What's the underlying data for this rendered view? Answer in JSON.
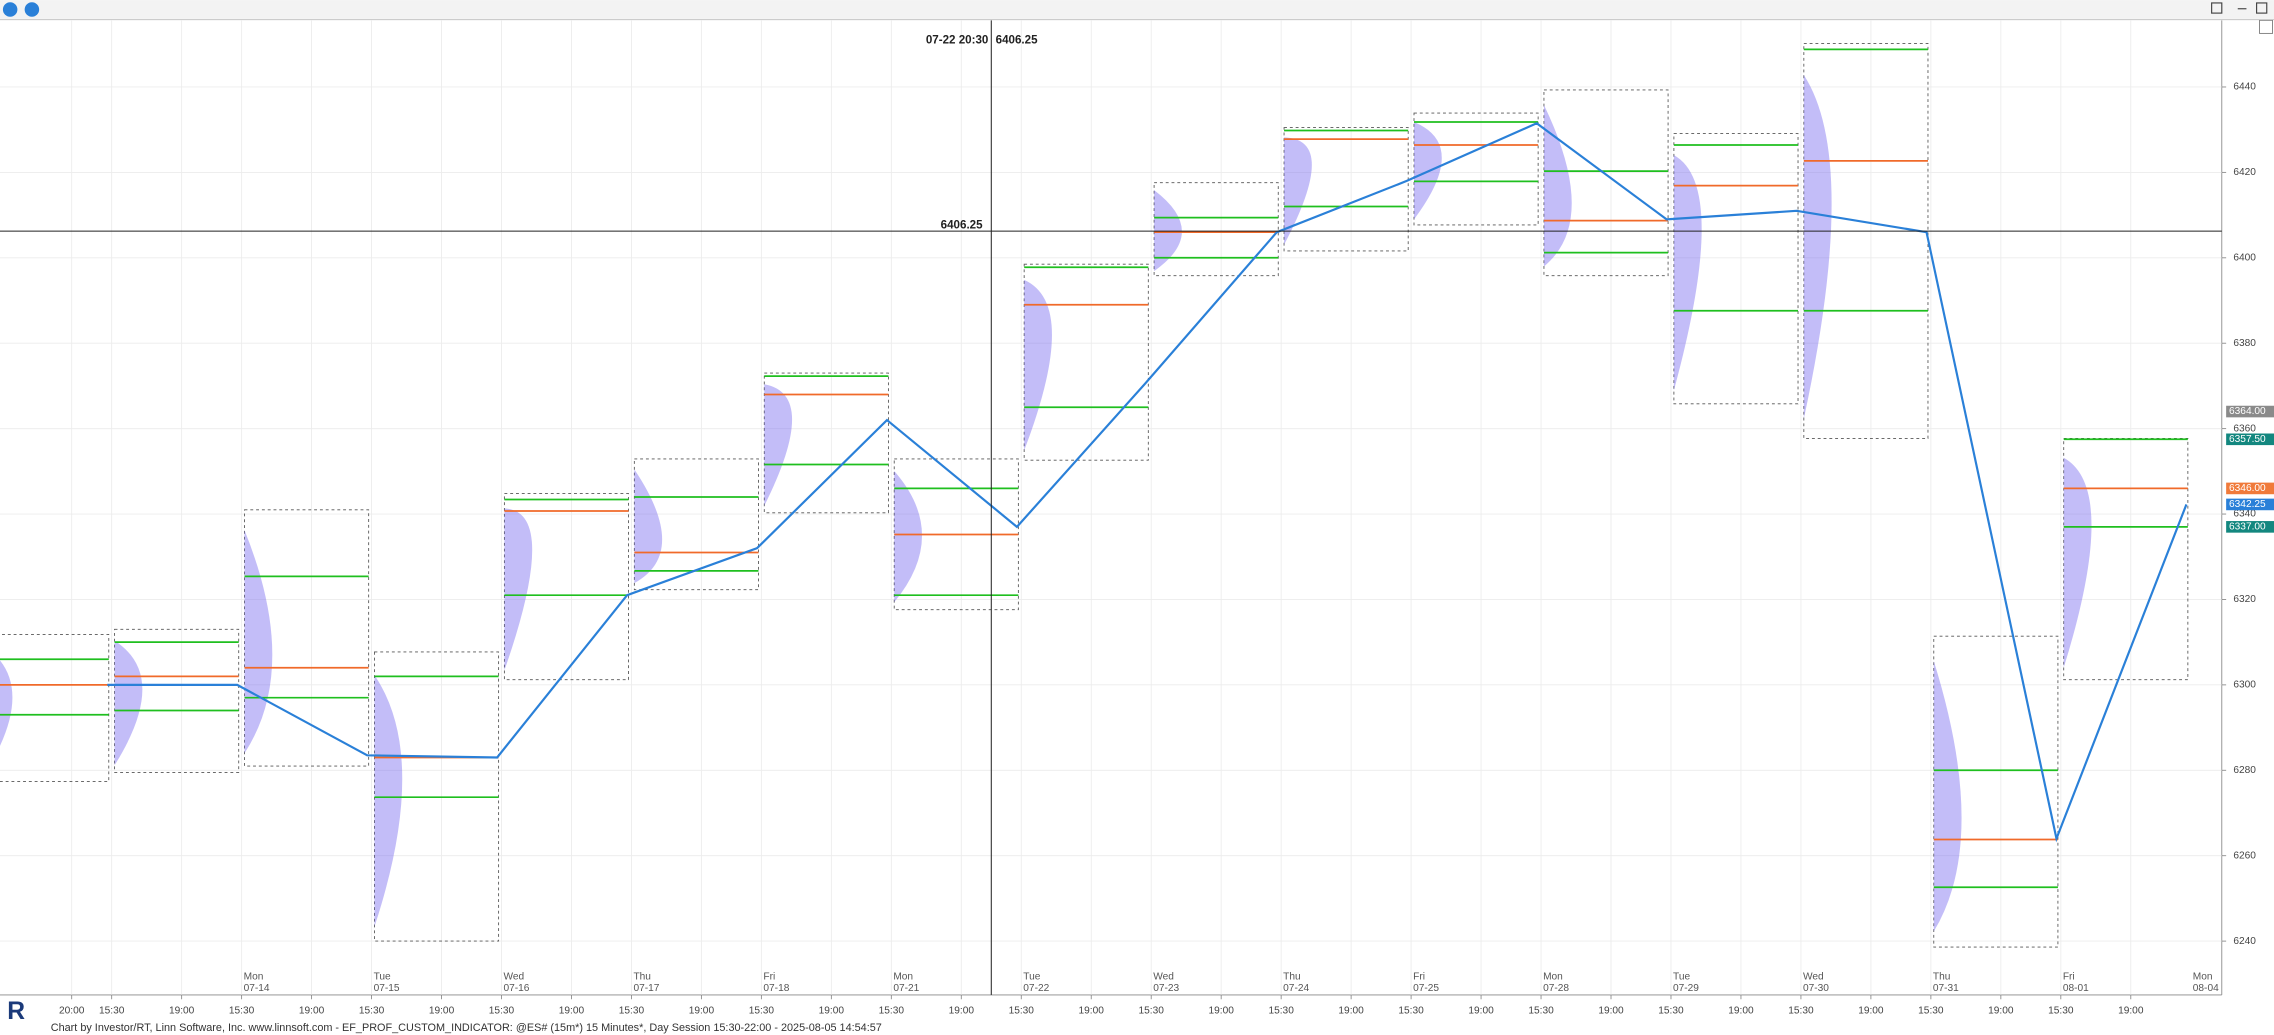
{
  "chart_data": {
    "type": "session-profile",
    "ylim": [
      6227.4,
      6455.6
    ],
    "yticks": [
      6240,
      6260,
      6280,
      6300,
      6320,
      6340,
      6360,
      6380,
      6400,
      6420,
      6440
    ],
    "grid": true,
    "colors": {
      "range": "#555555",
      "value_area": "#1fbf1f",
      "poc": "#f06a2a",
      "vwap": "#2a80d8"
    },
    "price_tags": [
      {
        "value": 6364,
        "label": "6364.00",
        "color": "#8a8a8a"
      },
      {
        "value": 6357.5,
        "label": "6357.50",
        "color": "#13877f"
      },
      {
        "value": 6346,
        "label": "6346.00",
        "color": "#f07a3a"
      },
      {
        "value": 6342.25,
        "label": "6342.25",
        "color": "#2a80d8"
      },
      {
        "value": 6337,
        "label": "6337.00",
        "color": "#13877f"
      }
    ],
    "crosshair": {
      "time": "07-22 20:30",
      "price": 6406.25
    },
    "sessions": [
      {
        "times": [
          "20:00"
        ],
        "high": 6311.8,
        "low": 6277.4,
        "vah": 6306,
        "val": 6293,
        "poc": 6300,
        "vwap": 6300
      },
      {
        "day": "Mon",
        "date": "07-14",
        "times": [
          "15:30",
          "19:00"
        ],
        "high": 6313,
        "low": 6279.5,
        "vah": 6310,
        "val": 6294,
        "poc": 6302,
        "vwap": 6300
      },
      {
        "day": "Tue",
        "date": "07-15",
        "times": [
          "15:30",
          "19:00"
        ],
        "high": 6341,
        "low": 6281,
        "vah": 6325.4,
        "val": 6297,
        "poc": 6304,
        "vwap": 6283.5
      },
      {
        "day": "Wed",
        "date": "07-16",
        "times": [
          "15:30",
          "19:00"
        ],
        "high": 6307.7,
        "low": 6240,
        "vah": 6302,
        "val": 6273.7,
        "poc": 6283,
        "vwap": 6283
      },
      {
        "day": "Thu",
        "date": "07-17",
        "times": [
          "15:30",
          "19:00"
        ],
        "high": 6344.8,
        "low": 6301.2,
        "vah": 6343.4,
        "val": 6321,
        "poc": 6340.7,
        "vwap": 6321
      },
      {
        "day": "Fri",
        "date": "07-18",
        "times": [
          "15:30",
          "19:00"
        ],
        "high": 6352.9,
        "low": 6322.3,
        "vah": 6344,
        "val": 6326.7,
        "poc": 6331,
        "vwap": 6332
      },
      {
        "day": "Mon",
        "date": "07-21",
        "times": [
          "15:30",
          "19:00"
        ],
        "high": 6373,
        "low": 6340.3,
        "vah": 6372.3,
        "val": 6351.6,
        "poc": 6368,
        "vwap": 6362
      },
      {
        "day": "Tue",
        "date": "07-22",
        "times": [
          "15:30",
          "19:00"
        ],
        "high": 6352.9,
        "low": 6317.6,
        "vah": 6346,
        "val": 6321,
        "poc": 6335.2,
        "vwap": 6337
      },
      {
        "day": "Wed",
        "date": "07-23",
        "times": [
          "15:30",
          "19:00"
        ],
        "high": 6398.5,
        "low": 6352.6,
        "vah": 6397.8,
        "val": 6365,
        "poc": 6389,
        "vwap": 6371
      },
      {
        "day": "Thu",
        "date": "07-24",
        "times": [
          "15:30",
          "19:00"
        ],
        "high": 6417.6,
        "low": 6395.8,
        "vah": 6409.4,
        "val": 6400,
        "poc": 6406,
        "vwap": 6406
      },
      {
        "day": "Fri",
        "date": "07-25",
        "times": [
          "15:30",
          "19:00"
        ],
        "high": 6430.5,
        "low": 6401.6,
        "vah": 6429.8,
        "val": 6412,
        "poc": 6427.8,
        "vwap": 6418
      },
      {
        "day": "Mon",
        "date": "07-28",
        "times": [
          "15:30",
          "19:00"
        ],
        "high": 6433.9,
        "low": 6407.7,
        "vah": 6431.8,
        "val": 6417.9,
        "poc": 6426.4,
        "vwap": 6431.5
      },
      {
        "day": "Tue",
        "date": "07-29",
        "times": [
          "15:30",
          "19:00"
        ],
        "high": 6439.3,
        "low": 6395.8,
        "vah": 6420.3,
        "val": 6401.2,
        "poc": 6408.7,
        "vwap": 6409
      },
      {
        "day": "Wed",
        "date": "07-30",
        "times": [
          "15:30",
          "19:00"
        ],
        "high": 6429.1,
        "low": 6365.8,
        "vah": 6426.4,
        "val": 6387.6,
        "poc": 6416.9,
        "vwap": 6411
      },
      {
        "day": "Thu",
        "date": "07-31",
        "times": [
          "15:30",
          "19:00"
        ],
        "high": 6450.2,
        "low": 6357.7,
        "vah": 6448.8,
        "val": 6387.6,
        "poc": 6422.7,
        "vwap": 6406
      },
      {
        "day": "Fri",
        "date": "08-01",
        "times": [
          "15:30",
          "19:00"
        ],
        "high": 6311.4,
        "low": 6238.6,
        "vah": 6280,
        "val": 6252.6,
        "poc": 6263.8,
        "vwap": 6264
      },
      {
        "day": "Mon",
        "date": "08-04",
        "times": [
          "15:30",
          "19:00"
        ],
        "high": 6357.7,
        "low": 6301.2,
        "vah": 6357.5,
        "val": 6337,
        "poc": 6346,
        "vwap": 6342.25
      }
    ],
    "footer": "Chart by Investor/RT, Linn Software, Inc. www.linnsoft.com - EF_PROF_CUSTOM_INDICATOR: @ES# (15m*) 15 Minutes*, Day Session 15:30-22:00 - 2025-08-05 14:54:57"
  }
}
